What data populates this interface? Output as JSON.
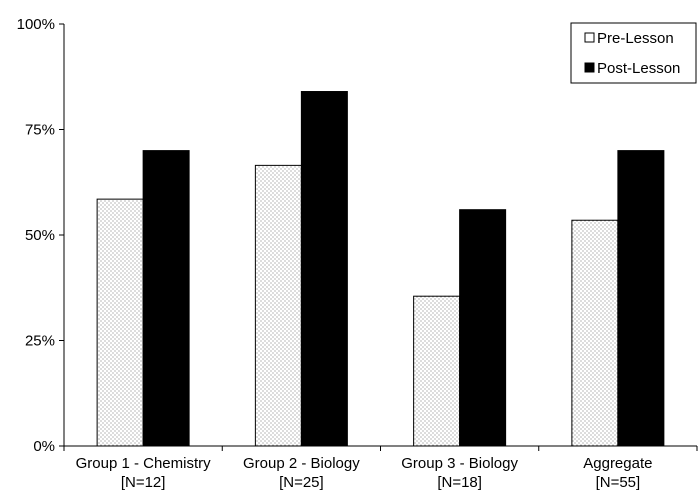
{
  "chart_data": {
    "type": "bar",
    "title": "",
    "xlabel": "",
    "ylabel": "",
    "ylim": [
      0,
      100
    ],
    "yticks": [
      "0%",
      "25%",
      "50%",
      "75%",
      "100%"
    ],
    "ytick_values": [
      0,
      25,
      50,
      75,
      100
    ],
    "categories": [
      {
        "line1": "Group 1 - Chemistry",
        "line2": "[N=12]"
      },
      {
        "line1": "Group 2 - Biology",
        "line2": "[N=25]"
      },
      {
        "line1": "Group 3 - Biology",
        "line2": "[N=18]"
      },
      {
        "line1": "Aggregate",
        "line2": "[N=55]"
      }
    ],
    "series": [
      {
        "name": "Pre-Lesson",
        "values": [
          58.5,
          66.5,
          35.5,
          53.5
        ],
        "fill": "dotted-light",
        "color": "#ffffff"
      },
      {
        "name": "Post-Lesson",
        "values": [
          70,
          84,
          56,
          70
        ],
        "fill": "solid",
        "color": "#000000"
      }
    ],
    "grid": false,
    "legend": {
      "position": "top-right"
    }
  }
}
